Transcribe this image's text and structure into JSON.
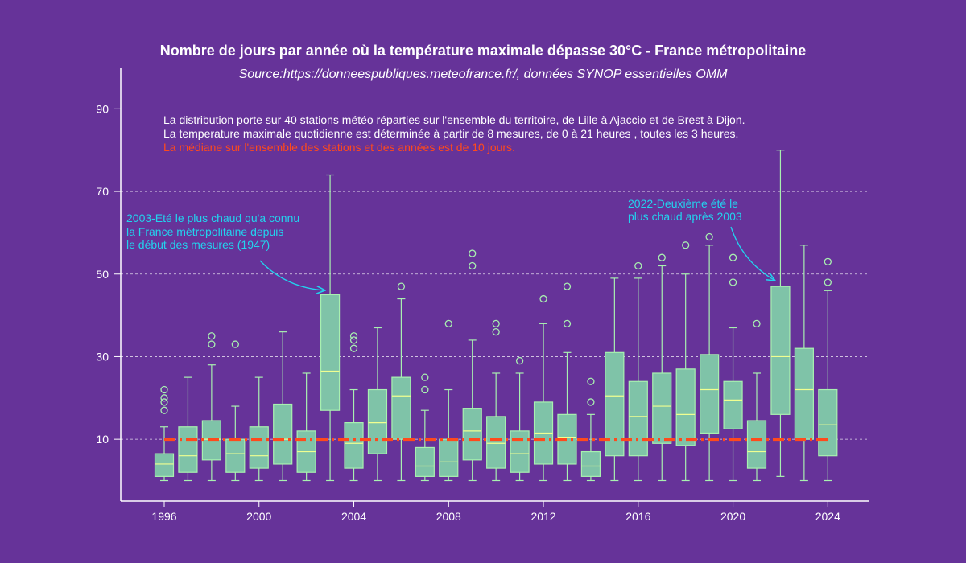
{
  "chart_data": {
    "type": "box",
    "title": "Nombre de jours par année où la température maximale dépasse 30°C - France métropolitaine",
    "subtitle": "Source:https://donneespubliques.meteofrance.fr/, données SYNOP essentielles OMM",
    "notes": [
      "La distribution porte sur 40 stations météo réparties sur l'ensemble du territoire, de Lille à Ajaccio et de Brest à Dijon.",
      "La temperature maximale quotidienne est déterminée à partir de 8 mesures, de 0 à 21 heures , toutes les 3 heures."
    ],
    "median_note": "La médiane sur l'ensemble des stations et des années est de 10 jours.",
    "overall_median": 10,
    "xlim": [
      1995,
      2025
    ],
    "ylim": [
      -5,
      100
    ],
    "yticks": [
      10,
      30,
      50,
      70,
      90
    ],
    "xticks": [
      1996,
      2000,
      2004,
      2008,
      2012,
      2016,
      2020,
      2024
    ],
    "grid": "horizontal dashed",
    "colors": {
      "background": "#663399",
      "box_fill": "#7fc3a8",
      "box_line": "#a8f0b0",
      "median_line": "#f0ff90",
      "overall_median": "#ff4a1c",
      "annotation": "#22d3ee",
      "text": "#ffffff"
    },
    "boxes": [
      {
        "year": 1996,
        "min": 0,
        "q1": 1,
        "median": 4,
        "q3": 6.5,
        "max": 13,
        "outliers": [
          17,
          19,
          20,
          22
        ]
      },
      {
        "year": 1997,
        "min": 0,
        "q1": 2,
        "median": 6,
        "q3": 13,
        "max": 25,
        "outliers": []
      },
      {
        "year": 1998,
        "min": 0,
        "q1": 5,
        "median": 10,
        "q3": 14.5,
        "max": 28,
        "outliers": [
          33,
          35
        ]
      },
      {
        "year": 1999,
        "min": 0,
        "q1": 2,
        "median": 6.5,
        "q3": 10,
        "max": 18,
        "outliers": [
          33
        ]
      },
      {
        "year": 2000,
        "min": 0,
        "q1": 3,
        "median": 6,
        "q3": 13,
        "max": 25,
        "outliers": []
      },
      {
        "year": 2001,
        "min": 0,
        "q1": 4,
        "median": 10,
        "q3": 18.5,
        "max": 36,
        "outliers": []
      },
      {
        "year": 2002,
        "min": 0,
        "q1": 2,
        "median": 7,
        "q3": 12,
        "max": 26,
        "outliers": []
      },
      {
        "year": 2003,
        "min": 0,
        "q1": 17,
        "median": 26.5,
        "q3": 45,
        "max": 74,
        "outliers": []
      },
      {
        "year": 2004,
        "min": 0,
        "q1": 3,
        "median": 9,
        "q3": 14,
        "max": 22,
        "outliers": [
          32,
          34,
          35
        ]
      },
      {
        "year": 2005,
        "min": 0,
        "q1": 6.5,
        "median": 14,
        "q3": 22,
        "max": 37,
        "outliers": []
      },
      {
        "year": 2006,
        "min": 0,
        "q1": 10,
        "median": 20.5,
        "q3": 25,
        "max": 44,
        "outliers": [
          47
        ]
      },
      {
        "year": 2007,
        "min": 0,
        "q1": 1,
        "median": 3.5,
        "q3": 8,
        "max": 17,
        "outliers": [
          22,
          25
        ]
      },
      {
        "year": 2008,
        "min": 0,
        "q1": 1,
        "median": 4.5,
        "q3": 10,
        "max": 22,
        "outliers": [
          38
        ]
      },
      {
        "year": 2009,
        "min": 0,
        "q1": 5,
        "median": 12,
        "q3": 17.5,
        "max": 34,
        "outliers": [
          52,
          55
        ]
      },
      {
        "year": 2010,
        "min": 0,
        "q1": 3,
        "median": 9,
        "q3": 15.5,
        "max": 26,
        "outliers": [
          36,
          38
        ]
      },
      {
        "year": 2011,
        "min": 0,
        "q1": 2,
        "median": 6.5,
        "q3": 12,
        "max": 26,
        "outliers": [
          29
        ]
      },
      {
        "year": 2012,
        "min": 0,
        "q1": 4,
        "median": 11.5,
        "q3": 19,
        "max": 38,
        "outliers": [
          44
        ]
      },
      {
        "year": 2013,
        "min": 0,
        "q1": 4,
        "median": 10.5,
        "q3": 16,
        "max": 31,
        "outliers": [
          38,
          47
        ]
      },
      {
        "year": 2014,
        "min": 0,
        "q1": 1,
        "median": 3.5,
        "q3": 7,
        "max": 16,
        "outliers": [
          19,
          24
        ]
      },
      {
        "year": 2015,
        "min": 0,
        "q1": 6,
        "median": 20.5,
        "q3": 31,
        "max": 49,
        "outliers": []
      },
      {
        "year": 2016,
        "min": 0,
        "q1": 6,
        "median": 15.5,
        "q3": 24,
        "max": 49,
        "outliers": [
          52
        ]
      },
      {
        "year": 2017,
        "min": 0,
        "q1": 9,
        "median": 18,
        "q3": 26,
        "max": 52,
        "outliers": [
          54
        ]
      },
      {
        "year": 2018,
        "min": 0,
        "q1": 8.5,
        "median": 16,
        "q3": 27,
        "max": 50,
        "outliers": [
          57
        ]
      },
      {
        "year": 2019,
        "min": 0,
        "q1": 11.5,
        "median": 22,
        "q3": 30.5,
        "max": 57,
        "outliers": [
          59
        ]
      },
      {
        "year": 2020,
        "min": 0,
        "q1": 12.5,
        "median": 19.5,
        "q3": 24,
        "max": 37,
        "outliers": [
          48,
          54
        ]
      },
      {
        "year": 2021,
        "min": 0,
        "q1": 3,
        "median": 7,
        "q3": 14.5,
        "max": 26,
        "outliers": [
          38
        ]
      },
      {
        "year": 2022,
        "min": 1,
        "q1": 16,
        "median": 30,
        "q3": 47,
        "max": 80,
        "outliers": []
      },
      {
        "year": 2023,
        "min": 0,
        "q1": 10,
        "median": 22,
        "q3": 32,
        "max": 57,
        "outliers": []
      },
      {
        "year": 2024,
        "min": 0,
        "q1": 6,
        "median": 13.5,
        "q3": 22,
        "max": 46,
        "outliers": [
          48,
          53
        ]
      }
    ],
    "annotations": [
      {
        "lines": [
          "2003-Eté le plus chaud qu'a connu",
          "la France métropolitaine depuis",
          "le début des mesures (1947)"
        ],
        "target_year": 2003
      },
      {
        "lines": [
          "2022-Deuxième été le",
          "plus chaud après 2003"
        ],
        "target_year": 2022
      }
    ]
  }
}
